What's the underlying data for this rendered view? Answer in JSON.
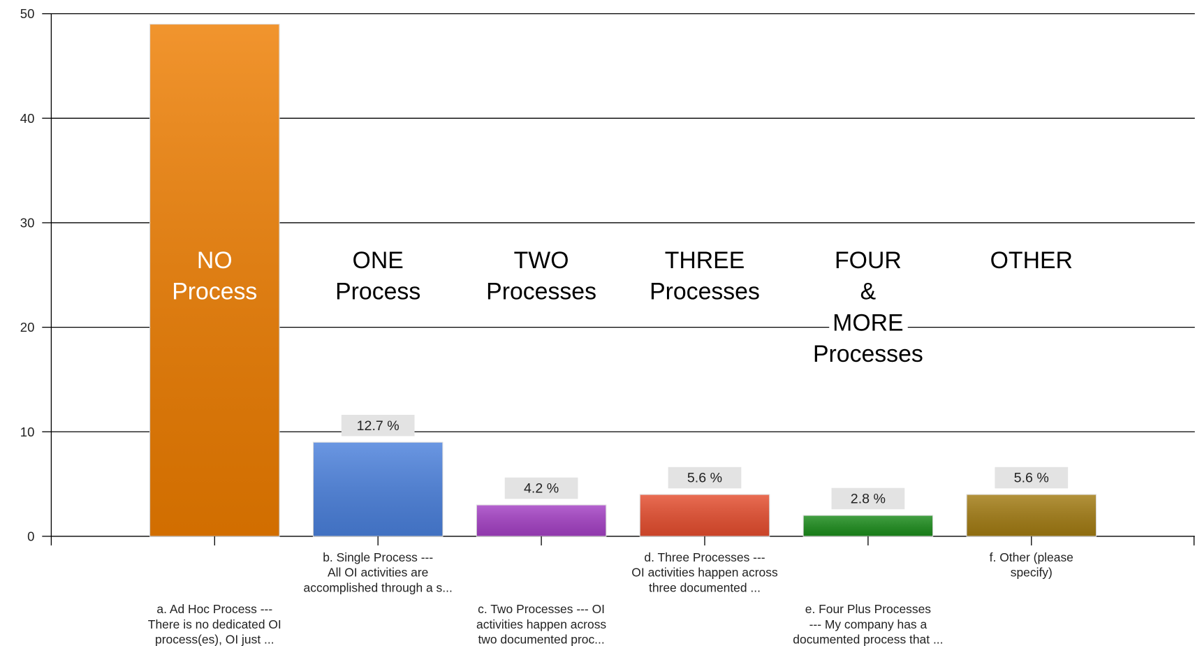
{
  "chart_data": {
    "type": "bar",
    "categories": [
      "a. Ad Hoc Process  ---\nThere is no dedicated OI\nprocess(es), OI just ...",
      "b. Single Process  ---\nAll OI activities are\naccomplished through a s...",
      "c. Two Processes  --- OI\nactivities happen across\ntwo documented proc...",
      "d. Three Processes  ---\nOI activities happen across\nthree documented ...",
      "e. Four Plus Processes\n--- My company has a\ndocumented process that ...",
      "f. Other  (please\nspecify)"
    ],
    "values": [
      49,
      9,
      3,
      4,
      2,
      4
    ],
    "value_labels": [
      null,
      "12.7 %",
      "4.2 %",
      "5.6 %",
      "2.8 %",
      "5.6 %"
    ],
    "colors": [
      "#ee7d00",
      "#4a80dc",
      "#a440c4",
      "#e54d2e",
      "#1b8c1b",
      "#a27b12"
    ],
    "annotations": [
      "NO\nProcess",
      "ONE\nProcess",
      "TWO\nProcesses",
      "THREE\nProcesses",
      "FOUR\n&\nMORE\nProcesses",
      "OTHER"
    ],
    "ylim": [
      0,
      50
    ],
    "yticks": [
      0,
      10,
      20,
      30,
      40,
      50
    ],
    "grid": true
  }
}
